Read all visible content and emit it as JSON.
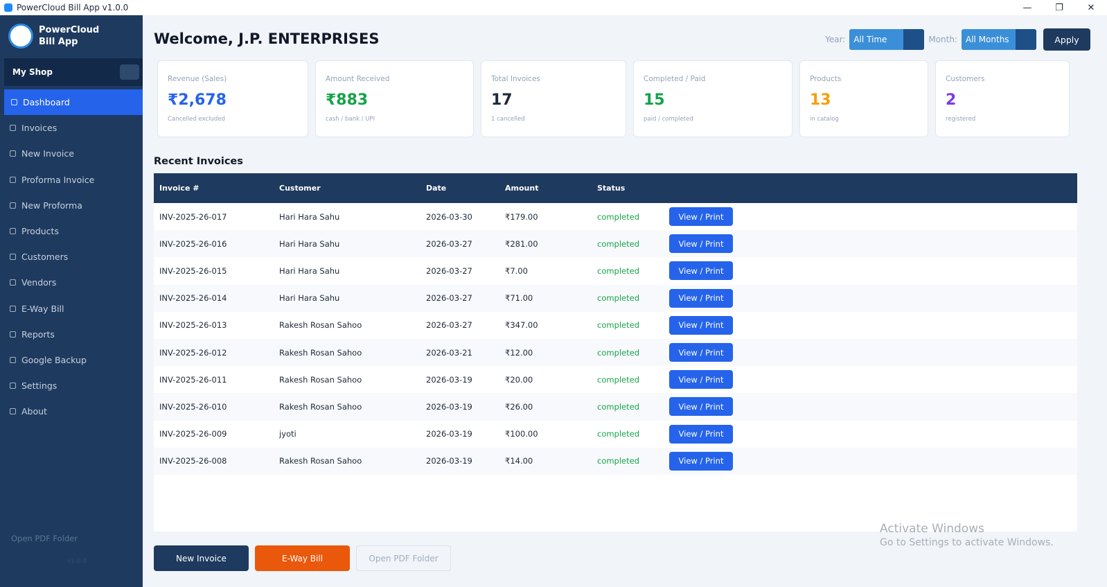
{
  "window": {
    "title": "PowerCloud Bill App v1.0.0"
  },
  "sidebar": {
    "brand": [
      "PowerCloud",
      "Bill App"
    ],
    "shop": "My Shop",
    "nav": [
      "Dashboard",
      "Invoices",
      "New Invoice",
      "Proforma Invoice",
      "New Proforma",
      "Products",
      "Customers",
      "Vendors",
      "E-Way Bill",
      "Reports",
      "Google Backup",
      "Settings",
      "About"
    ],
    "footer": "Open PDF Folder",
    "version": "v1.0.0"
  },
  "header": {
    "welcome": "Welcome, J.P. ENTERPRISES",
    "year_label": "Year:",
    "year": "All Time",
    "month_label": "Month:",
    "month": "All Months",
    "apply": "Apply"
  },
  "stats": [
    {
      "label": "Revenue (Sales)",
      "value": "₹2,678",
      "note": "Cancelled excluded",
      "color": "#2563eb"
    },
    {
      "label": "Amount Received",
      "value": "₹883",
      "note": "cash / bank / UPI",
      "color": "#16a34a"
    },
    {
      "label": "Total Invoices",
      "value": "17",
      "note": "1 cancelled",
      "color": "#1e293b"
    },
    {
      "label": "Completed / Paid",
      "value": "15",
      "note": "paid / completed",
      "color": "#16a34a"
    },
    {
      "label": "Products",
      "value": "13",
      "note": "in catalog",
      "color": "#f59e0b"
    },
    {
      "label": "Customers",
      "value": "2",
      "note": "registered",
      "color": "#7c3aed"
    }
  ],
  "recent": {
    "title": "Recent Invoices",
    "columns": [
      "Invoice #",
      "Customer",
      "Date",
      "Amount",
      "Status"
    ],
    "rows": [
      [
        "INV-2025-26-017",
        "Hari Hara Sahu",
        "2026-03-30",
        "₹179.00",
        "completed"
      ],
      [
        "INV-2025-26-016",
        "Hari Hara Sahu",
        "2026-03-27",
        "₹281.00",
        "completed"
      ],
      [
        "INV-2025-26-015",
        "Hari Hara Sahu",
        "2026-03-27",
        "₹7.00",
        "completed"
      ],
      [
        "INV-2025-26-014",
        "Hari Hara Sahu",
        "2026-03-27",
        "₹71.00",
        "completed"
      ],
      [
        "INV-2025-26-013",
        "Rakesh Rosan Sahoo",
        "2026-03-27",
        "₹347.00",
        "completed"
      ],
      [
        "INV-2025-26-012",
        "Rakesh Rosan Sahoo",
        "2026-03-21",
        "₹12.00",
        "completed"
      ],
      [
        "INV-2025-26-011",
        "Rakesh Rosan Sahoo",
        "2026-03-19",
        "₹20.00",
        "completed"
      ],
      [
        "INV-2025-26-010",
        "Rakesh Rosan Sahoo",
        "2026-03-19",
        "₹26.00",
        "completed"
      ],
      [
        "INV-2025-26-009",
        "jyoti",
        "2026-03-19",
        "₹100.00",
        "completed"
      ],
      [
        "INV-2025-26-008",
        "Rakesh Rosan Sahoo",
        "2026-03-19",
        "₹14.00",
        "completed"
      ]
    ],
    "action": "View / Print"
  },
  "actions": [
    "New Invoice",
    "E-Way Bill",
    "Open PDF Folder"
  ],
  "watermark": [
    "Activate Windows",
    "Go to Settings to activate Windows."
  ]
}
